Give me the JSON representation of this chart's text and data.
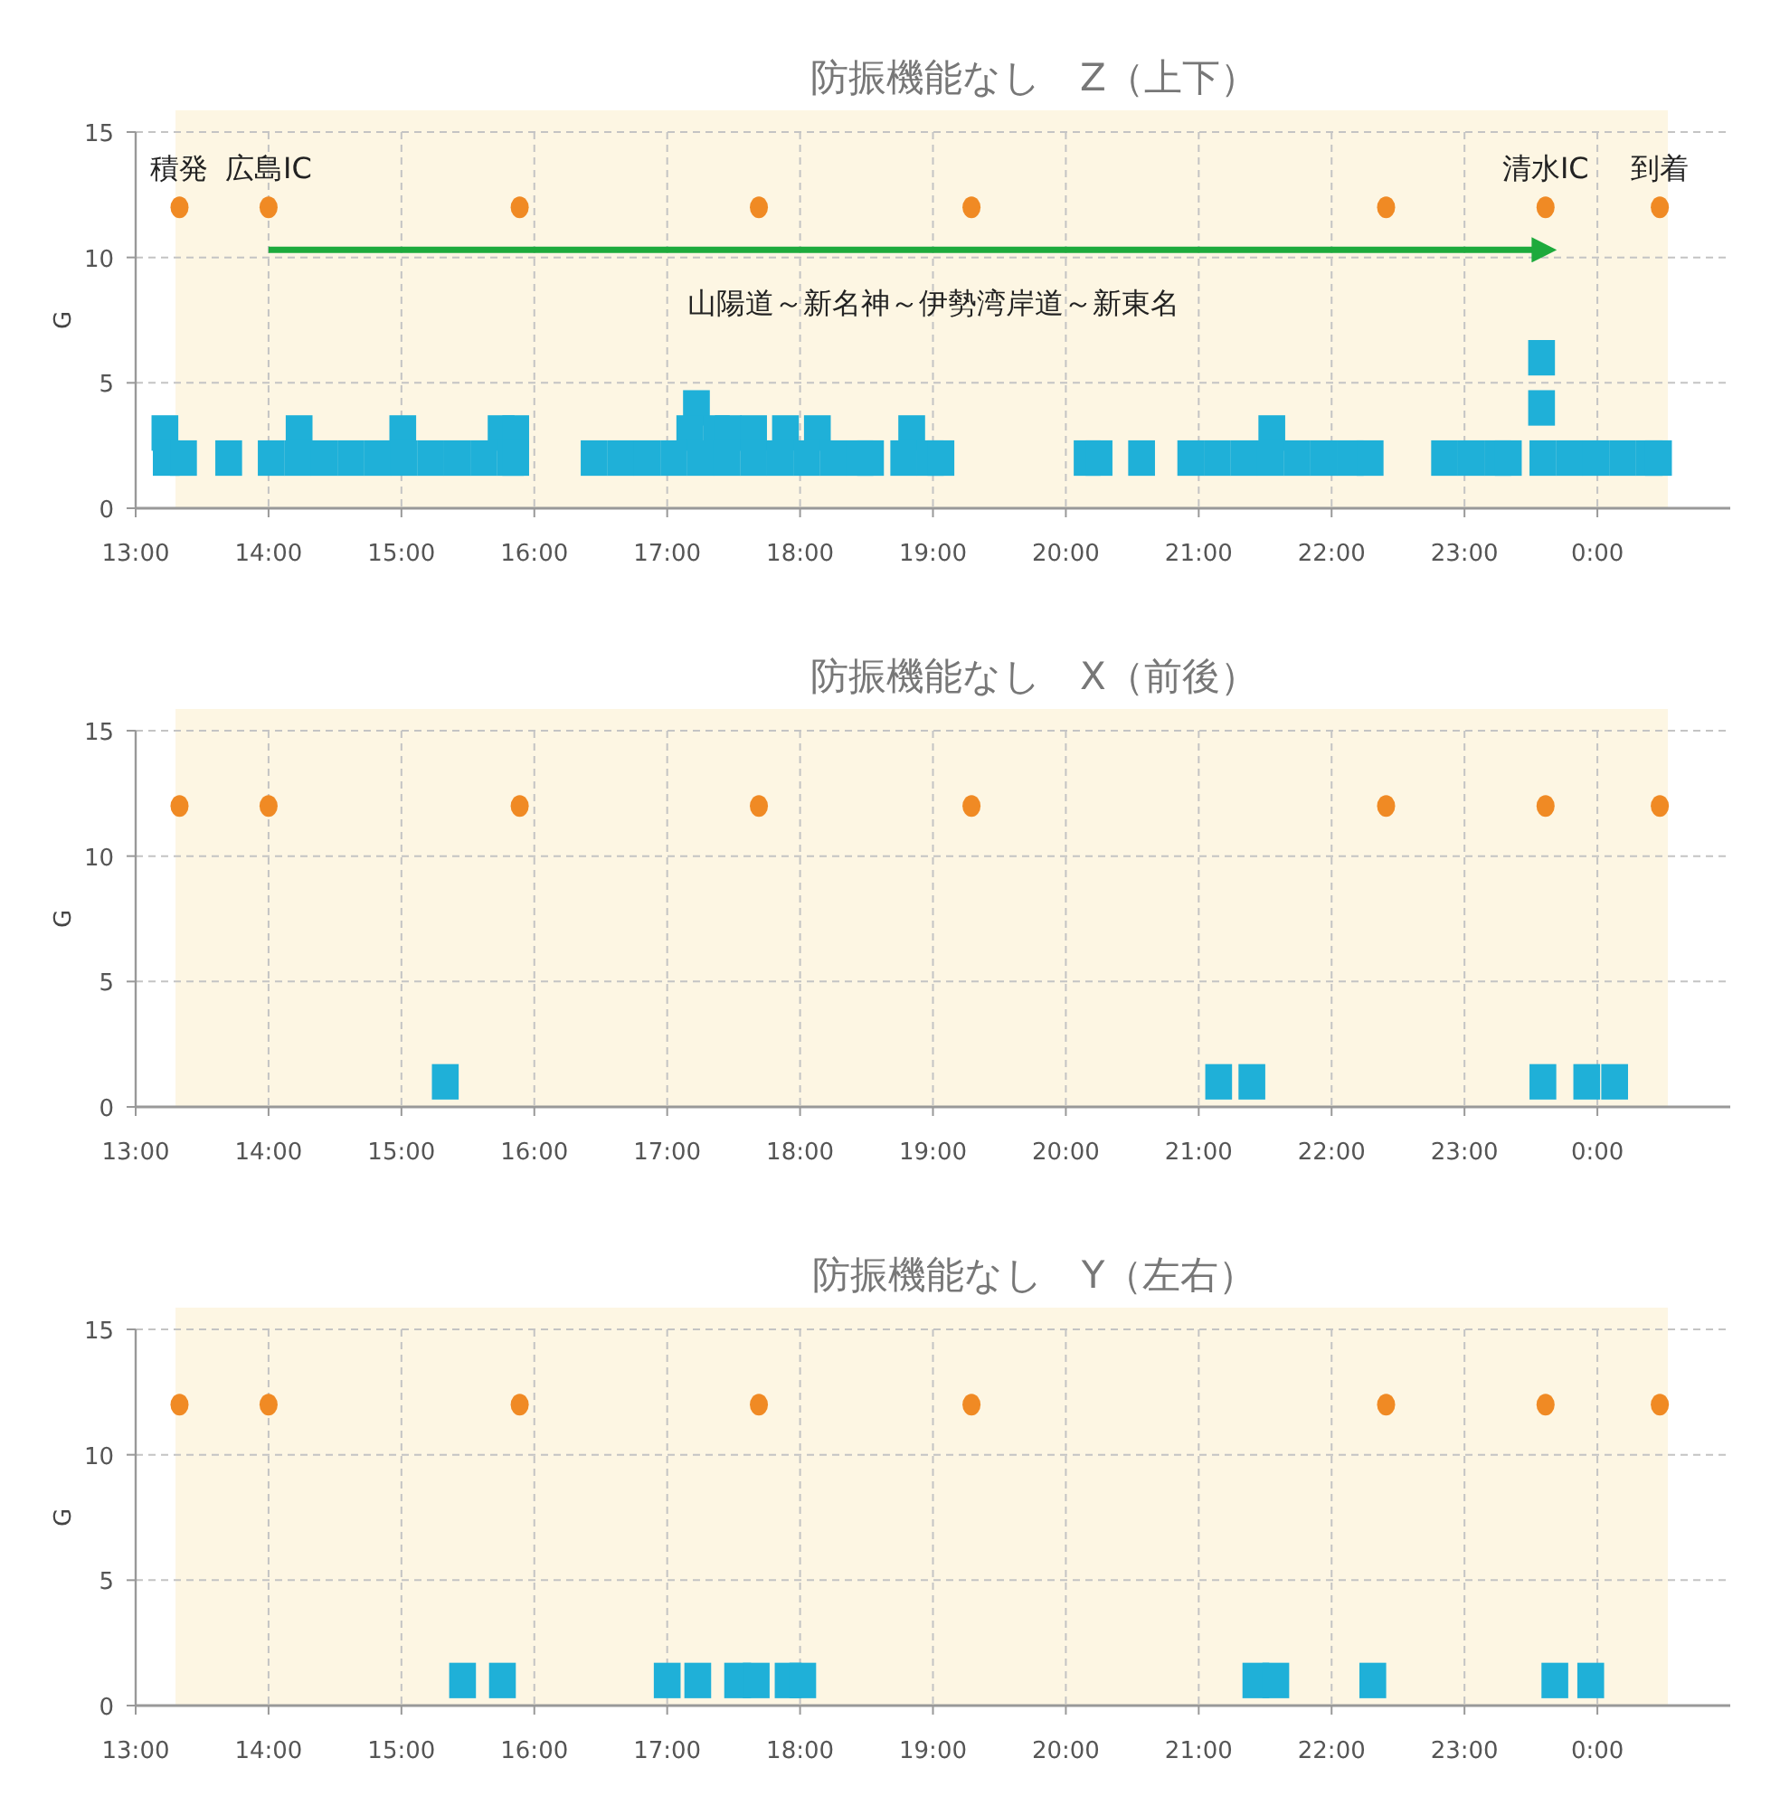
{
  "chart_data": [
    {
      "type": "scatter",
      "title": "防振機能なし　Z（上下）",
      "ylabel": "G",
      "xlim": [
        13,
        25
      ],
      "ylim": [
        0,
        15
      ],
      "yticks": [
        0,
        5,
        10,
        15
      ],
      "grid": true,
      "xticks": [
        {
          "value": 13,
          "label": "13:00"
        },
        {
          "value": 14,
          "label": "14:00"
        },
        {
          "value": 15,
          "label": "15:00"
        },
        {
          "value": 16,
          "label": "16:00"
        },
        {
          "value": 17,
          "label": "17:00"
        },
        {
          "value": 18,
          "label": "18:00"
        },
        {
          "value": 19,
          "label": "19:00"
        },
        {
          "value": 20,
          "label": "20:00"
        },
        {
          "value": 21,
          "label": "21:00"
        },
        {
          "value": 22,
          "label": "22:00"
        },
        {
          "value": 23,
          "label": "23:00"
        },
        {
          "value": 24,
          "label": "0:00"
        }
      ],
      "bands": [
        {
          "axis": "x",
          "from": 13.3,
          "to": 24.53,
          "color": "#fdf6e3"
        }
      ],
      "annotations": [
        {
          "text": "積発",
          "x": 13.33,
          "y": 12
        },
        {
          "text": "広島IC",
          "x": 14.0,
          "y": 12
        },
        {
          "text": "清水IC",
          "x": 23.61,
          "y": 12
        },
        {
          "text": "到着",
          "x": 24.47,
          "y": 12
        },
        "山陽道～新名神～伊勢湾岸道～新東名"
      ],
      "series": [
        {
          "type": "scatter",
          "marker": "square",
          "color": "#1fb0d8",
          "x": [
            23.58,
            17.22,
            23.58,
            13.22,
            14.23,
            15.01,
            15.75,
            15.86,
            17.17,
            17.37,
            17.46,
            17.65,
            17.89,
            18.13,
            18.84,
            21.55,
            13.23,
            13.36,
            13.7,
            14.02,
            14.22,
            14.42,
            14.62,
            14.82,
            15.02,
            15.22,
            15.42,
            15.62,
            15.82,
            15.86,
            16.45,
            16.65,
            16.85,
            17.05,
            17.25,
            17.45,
            17.65,
            17.85,
            18.05,
            18.25,
            18.45,
            18.53,
            18.78,
            18.98,
            19.06,
            20.16,
            20.25,
            20.57,
            20.94,
            21.14,
            21.34,
            21.54,
            21.74,
            21.94,
            22.14,
            22.29,
            22.85,
            23.05,
            23.25,
            23.33,
            23.59,
            23.79,
            23.99,
            24.19,
            24.39,
            24.46
          ],
          "values": [
            6,
            4,
            4,
            3,
            3,
            3,
            3,
            3,
            3,
            3,
            3,
            3,
            3,
            3,
            3,
            3,
            2,
            2,
            2,
            2,
            2,
            2,
            2,
            2,
            2,
            2,
            2,
            2,
            2,
            2,
            2,
            2,
            2,
            2,
            2,
            2,
            2,
            2,
            2,
            2,
            2,
            2,
            2,
            2,
            2,
            2,
            2,
            2,
            2,
            2,
            2,
            2,
            2,
            2,
            2,
            2,
            2,
            2,
            2,
            2,
            2,
            2,
            2,
            2,
            2,
            2
          ]
        },
        {
          "type": "scatter",
          "marker": "circle",
          "color": "#f08a24",
          "x": [
            13.33,
            14.0,
            15.89,
            17.69,
            19.29,
            22.41,
            23.61,
            24.47
          ],
          "values": [
            12,
            12,
            12,
            12,
            12,
            12,
            12,
            12
          ]
        },
        {
          "type": "line",
          "marker": "none",
          "color": "#1daa3c",
          "x": [
            14.0,
            23.61
          ],
          "values": [
            10.3,
            10.3
          ]
        }
      ]
    },
    {
      "type": "scatter",
      "title": "防振機能なし　X（前後）",
      "ylabel": "G",
      "xlim": [
        13,
        25
      ],
      "ylim": [
        0,
        15
      ],
      "yticks": [
        0,
        5,
        10,
        15
      ],
      "grid": true,
      "xticks": [
        {
          "value": 13,
          "label": "13:00"
        },
        {
          "value": 14,
          "label": "14:00"
        },
        {
          "value": 15,
          "label": "15:00"
        },
        {
          "value": 16,
          "label": "16:00"
        },
        {
          "value": 17,
          "label": "17:00"
        },
        {
          "value": 18,
          "label": "18:00"
        },
        {
          "value": 19,
          "label": "19:00"
        },
        {
          "value": 20,
          "label": "20:00"
        },
        {
          "value": 21,
          "label": "21:00"
        },
        {
          "value": 22,
          "label": "22:00"
        },
        {
          "value": 23,
          "label": "23:00"
        },
        {
          "value": 24,
          "label": "0:00"
        }
      ],
      "bands": [
        {
          "axis": "x",
          "from": 13.3,
          "to": 24.53,
          "color": "#fdf6e3"
        }
      ],
      "series": [
        {
          "type": "scatter",
          "marker": "square",
          "color": "#1fb0d8",
          "x": [
            15.33,
            21.15,
            21.4,
            23.59,
            23.92,
            24.13
          ],
          "values": [
            1,
            1,
            1,
            1,
            1,
            1
          ]
        },
        {
          "type": "scatter",
          "marker": "circle",
          "color": "#f08a24",
          "x": [
            13.33,
            14.0,
            15.89,
            17.69,
            19.29,
            22.41,
            23.61,
            24.47
          ],
          "values": [
            12,
            12,
            12,
            12,
            12,
            12,
            12,
            12
          ]
        }
      ]
    },
    {
      "type": "scatter",
      "title": "防振機能なし　Y（左右）",
      "ylabel": "G",
      "xlim": [
        13,
        25
      ],
      "ylim": [
        0,
        15
      ],
      "yticks": [
        0,
        5,
        10,
        15
      ],
      "grid": true,
      "xticks": [
        {
          "value": 13,
          "label": "13:00"
        },
        {
          "value": 14,
          "label": "14:00"
        },
        {
          "value": 15,
          "label": "15:00"
        },
        {
          "value": 16,
          "label": "16:00"
        },
        {
          "value": 17,
          "label": "17:00"
        },
        {
          "value": 18,
          "label": "18:00"
        },
        {
          "value": 19,
          "label": "19:00"
        },
        {
          "value": 20,
          "label": "20:00"
        },
        {
          "value": 21,
          "label": "21:00"
        },
        {
          "value": 22,
          "label": "22:00"
        },
        {
          "value": 23,
          "label": "23:00"
        },
        {
          "value": 24,
          "label": "0:00"
        }
      ],
      "bands": [
        {
          "axis": "x",
          "from": 13.3,
          "to": 24.53,
          "color": "#fdf6e3"
        }
      ],
      "series": [
        {
          "type": "scatter",
          "marker": "square",
          "color": "#1fb0d8",
          "x": [
            15.46,
            15.76,
            17.0,
            17.23,
            17.53,
            17.67,
            17.91,
            18.02,
            21.43,
            21.58,
            22.31,
            23.68,
            23.95
          ],
          "values": [
            1,
            1,
            1,
            1,
            1,
            1,
            1,
            1,
            1,
            1,
            1,
            1,
            1
          ]
        },
        {
          "type": "scatter",
          "marker": "circle",
          "color": "#f08a24",
          "x": [
            13.33,
            14.0,
            15.89,
            17.69,
            19.29,
            22.41,
            23.61,
            24.47
          ],
          "values": [
            12,
            12,
            12,
            12,
            12,
            12,
            12,
            12
          ]
        }
      ]
    }
  ]
}
